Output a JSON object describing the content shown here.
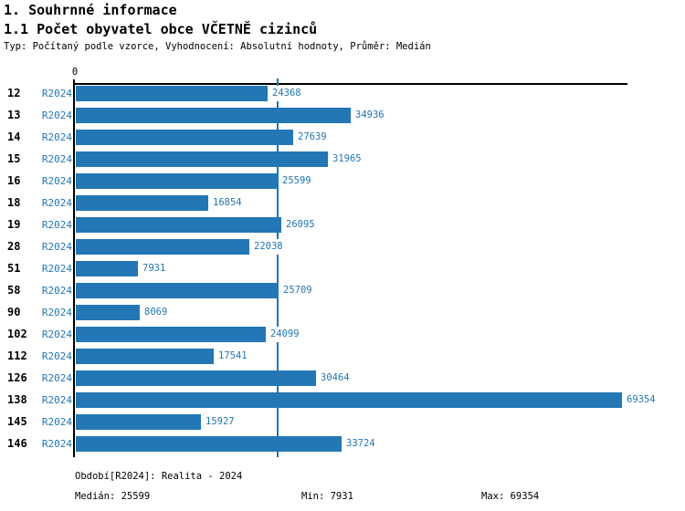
{
  "header": {
    "title": "1. Souhrnné informace",
    "subtitle": "1.1 Počet obyvatel obce VČETNĚ cizinců",
    "meta": "Typ: Počítaný podle vzorce, Vyhodnocení: Absolutní hodnoty, Průměr: Medián"
  },
  "chart_data": {
    "type": "bar",
    "orientation": "horizontal",
    "title": "1.1 Počet obyvatel obce VČETNĚ cizinců",
    "series_label": "R2024",
    "categories": [
      "12",
      "13",
      "14",
      "15",
      "16",
      "18",
      "19",
      "28",
      "51",
      "58",
      "90",
      "102",
      "112",
      "126",
      "138",
      "145",
      "146"
    ],
    "values": [
      24368,
      34936,
      27639,
      31965,
      25599,
      16854,
      26095,
      22038,
      7931,
      25709,
      8069,
      24099,
      17541,
      30464,
      69354,
      15927,
      33724
    ],
    "xlim": [
      0,
      70000
    ],
    "x_tick_labels": [
      "0"
    ],
    "grid": false,
    "legend_position": "none",
    "median_line_value": 25599,
    "stats": {
      "median": 25599,
      "min": 7931,
      "max": 69354
    }
  },
  "footer": {
    "period": "Období[R2024]: Realita - 2024",
    "median": "Medián: 25599",
    "min": "Min: 7931",
    "max": "Max: 69354"
  },
  "colors": {
    "accent": "#2277b4",
    "text": "#000000",
    "axis": "#000000"
  }
}
